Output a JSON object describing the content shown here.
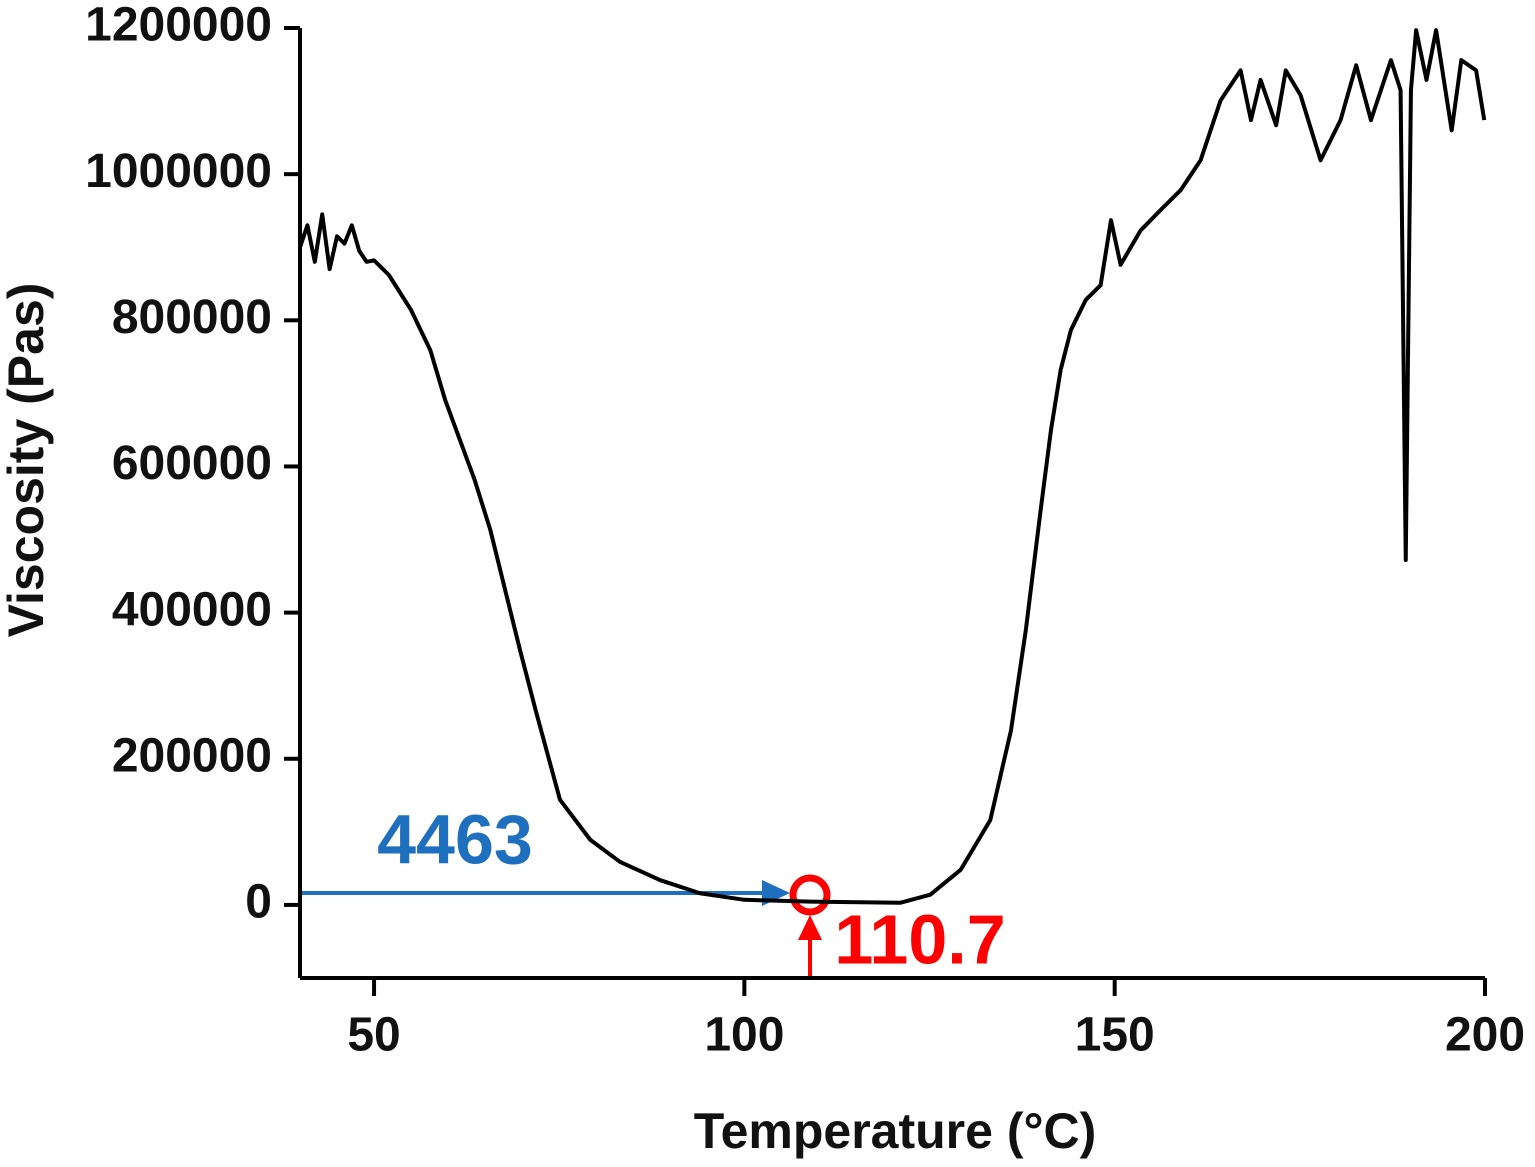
{
  "chart_data": {
    "type": "line",
    "xlabel": "Temperature (°C)",
    "ylabel": "Viscosity  (Pas)",
    "xlim": [
      40,
      200
    ],
    "xticks": [
      50,
      100,
      150,
      200
    ],
    "ylim": [
      -100000,
      1200000
    ],
    "yticks": [
      0,
      200000,
      400000,
      600000,
      800000,
      1000000,
      1200000
    ],
    "series": [
      {
        "color": "#000000",
        "x": [
          40,
          41,
          42,
          43,
          44,
          45,
          46,
          47,
          48,
          49,
          50,
          52,
          55,
          57.6,
          59.6,
          61.6,
          63.6,
          65.7,
          67.7,
          69.7,
          71.8,
          75.1,
          79.2,
          83.2,
          88.6,
          94,
          100,
          108.9,
          121.1,
          125.1,
          129.2,
          133.2,
          136,
          138,
          140,
          141.4,
          142.7,
          144.1,
          146.1,
          148.1,
          149.5,
          150.8,
          153.5,
          156.2,
          158.9,
          161.6,
          164.3,
          167,
          168.4,
          169.7,
          171.8,
          173.1,
          175.1,
          177.8,
          180.5,
          182.6,
          184.6,
          187.3,
          188.6,
          189.3,
          190,
          190.7,
          192.1,
          193.4,
          195.5,
          196.8,
          198.8,
          199.9
        ],
        "values": [
          900000,
          930000,
          880000,
          945000,
          870000,
          915000,
          905000,
          930000,
          895000,
          880000,
          882000,
          862000,
          814000,
          759000,
          691000,
          636000,
          581000,
          513000,
          431000,
          349000,
          267000,
          144000,
          89000,
          59000,
          34000,
          16000,
          7000,
          4500,
          3000,
          14000,
          48000,
          116000,
          239000,
          376000,
          540000,
          650000,
          732000,
          787000,
          828000,
          848000,
          937000,
          876000,
          923000,
          951000,
          978000,
          1019000,
          1101000,
          1142000,
          1074000,
          1129000,
          1067000,
          1142000,
          1108000,
          1019000,
          1074000,
          1149000,
          1074000,
          1156000,
          1115000,
          472000,
          1115000,
          1197000,
          1129000,
          1197000,
          1060000,
          1156000,
          1142000,
          1074000
        ]
      }
    ],
    "annotations": [
      {
        "text": "4463",
        "color": "#1f6fbf"
      },
      {
        "text": "110.7",
        "color": "#ff0000"
      }
    ]
  }
}
